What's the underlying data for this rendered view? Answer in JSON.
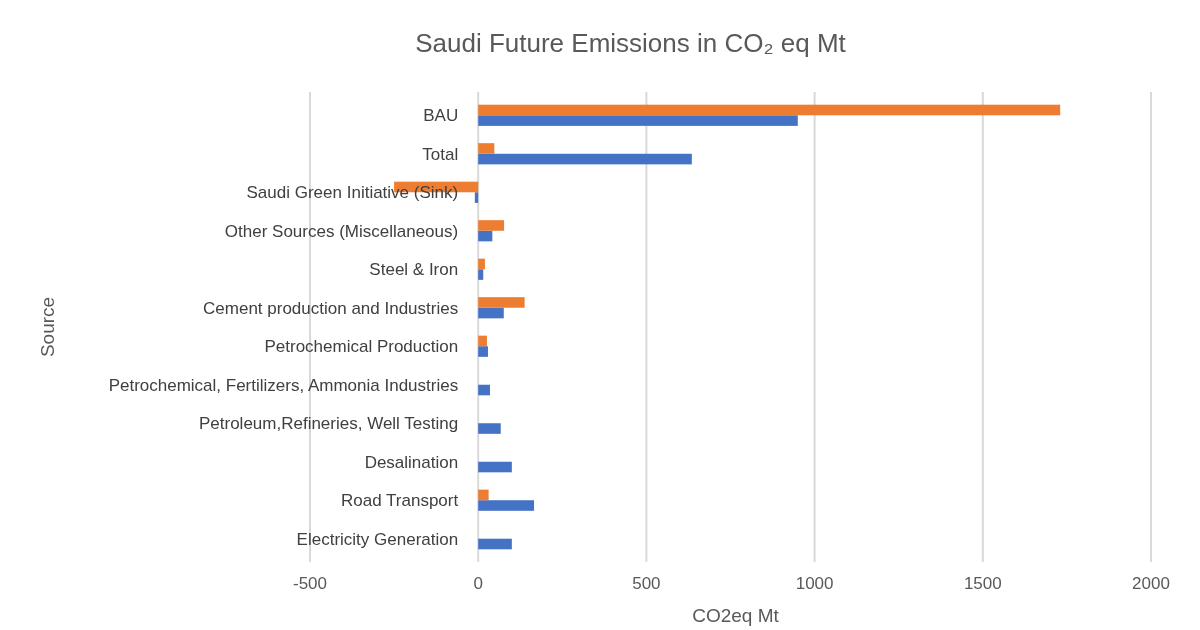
{
  "chart_data": {
    "type": "bar",
    "orientation": "horizontal",
    "title": "Saudi Future Emissions in CO₂ eq Mt",
    "xlabel": "CO2eq Mt",
    "ylabel": "Source",
    "categories": [
      "BAU",
      "Total",
      "Saudi Green Initiative (Sink)",
      "Other Sources (Miscellaneous)",
      "Steel & Iron",
      "Cement production and Industries",
      "Petrochemical Production",
      "Petrochemical, Fertilizers, Ammonia Industries",
      "Petroleum,Refineries, Well Testing",
      "Desalination",
      "Road Transport",
      "Electricity Generation"
    ],
    "series": [
      {
        "color": "#4472c4",
        "values": [
          950,
          635,
          -10,
          42,
          15,
          76,
          29,
          35,
          67,
          100,
          166,
          100
        ]
      },
      {
        "color": "#ed7d31",
        "values": [
          1730,
          48,
          -250,
          77,
          20,
          138,
          26,
          null,
          null,
          null,
          31,
          null
        ]
      }
    ],
    "xlim": [
      -500,
      2000
    ],
    "xticks": [
      -500,
      0,
      500,
      1000,
      1500,
      2000
    ],
    "grid": "x"
  }
}
